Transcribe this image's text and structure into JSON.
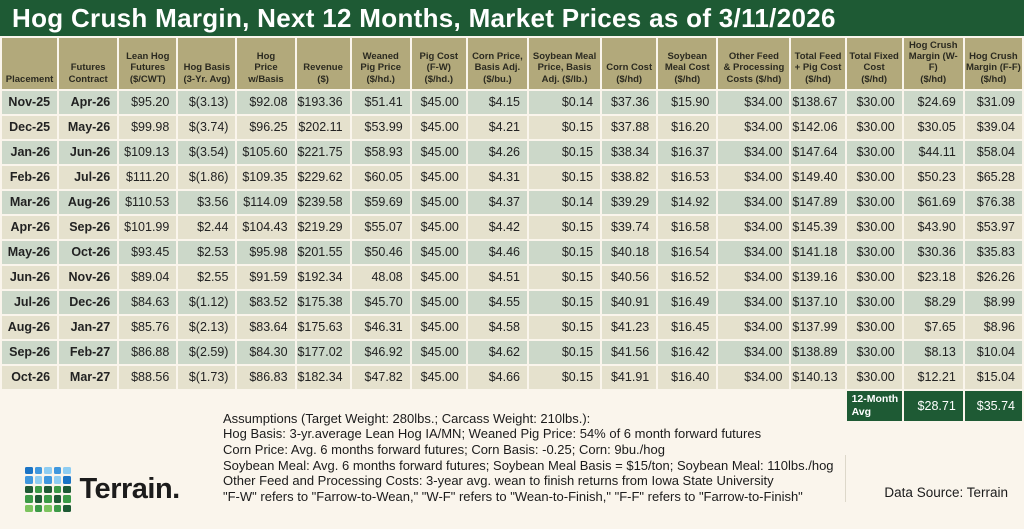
{
  "title": "Hog Crush Margin, Next 12 Months, Market Prices as of 3/11/2026",
  "chart_data": {
    "type": "table",
    "title": "Hog Crush Margin, Next 12 Months, Market Prices as of 3/11/2026",
    "columns": [
      "Placement",
      "Futures\nContract",
      "Lean Hog\nFutures\n($/CWT)",
      "Hog Basis\n(3-Yr. Avg)",
      "Hog\nPrice\nw/Basis",
      "Revenue\n($)",
      "Weaned\nPig Price\n($/hd.)",
      "Pig Cost\n(F-W)\n($/hd.)",
      "Corn Price,\nBasis Adj.\n($/bu.)",
      "Soybean Meal\nPrice, Basis\nAdj. ($/lb.)",
      "Corn Cost\n($/hd)",
      "Soybean\nMeal Cost\n($/hd)",
      "Other Feed\n& Processing\nCosts ($/hd)",
      "Total Feed\n+ Pig Cost\n($/hd)",
      "Total Fixed\nCost\n($/hd)",
      "Hog Crush\nMargin (W-F)\n($/hd)",
      "Hog Crush\nMargin (F-F)\n($/hd)"
    ],
    "rows": [
      [
        "Nov-25",
        "Apr-26",
        "$95.20",
        "$(3.13)",
        "$92.08",
        "$193.36",
        "$51.41",
        "$45.00",
        "$4.15",
        "$0.14",
        "$37.36",
        "$15.90",
        "$34.00",
        "$138.67",
        "$30.00",
        "$24.69",
        "$31.09"
      ],
      [
        "Dec-25",
        "May-26",
        "$99.98",
        "$(3.74)",
        "$96.25",
        "$202.11",
        "$53.99",
        "$45.00",
        "$4.21",
        "$0.15",
        "$37.88",
        "$16.20",
        "$34.00",
        "$142.06",
        "$30.00",
        "$30.05",
        "$39.04"
      ],
      [
        "Jan-26",
        "Jun-26",
        "$109.13",
        "$(3.54)",
        "$105.60",
        "$221.75",
        "$58.93",
        "$45.00",
        "$4.26",
        "$0.15",
        "$38.34",
        "$16.37",
        "$34.00",
        "$147.64",
        "$30.00",
        "$44.11",
        "$58.04"
      ],
      [
        "Feb-26",
        "Jul-26",
        "$111.20",
        "$(1.86)",
        "$109.35",
        "$229.62",
        "$60.05",
        "$45.00",
        "$4.31",
        "$0.15",
        "$38.82",
        "$16.53",
        "$34.00",
        "$149.40",
        "$30.00",
        "$50.23",
        "$65.28"
      ],
      [
        "Mar-26",
        "Aug-26",
        "$110.53",
        "$3.56",
        "$114.09",
        "$239.58",
        "$59.69",
        "$45.00",
        "$4.37",
        "$0.14",
        "$39.29",
        "$14.92",
        "$34.00",
        "$147.89",
        "$30.00",
        "$61.69",
        "$76.38"
      ],
      [
        "Apr-26",
        "Sep-26",
        "$101.99",
        "$2.44",
        "$104.43",
        "$219.29",
        "$55.07",
        "$45.00",
        "$4.42",
        "$0.15",
        "$39.74",
        "$16.58",
        "$34.00",
        "$145.39",
        "$30.00",
        "$43.90",
        "$53.97"
      ],
      [
        "May-26",
        "Oct-26",
        "$93.45",
        "$2.53",
        "$95.98",
        "$201.55",
        "$50.46",
        "$45.00",
        "$4.46",
        "$0.15",
        "$40.18",
        "$16.54",
        "$34.00",
        "$141.18",
        "$30.00",
        "$30.36",
        "$35.83"
      ],
      [
        "Jun-26",
        "Nov-26",
        "$89.04",
        "$2.55",
        "$91.59",
        "$192.34",
        "48.08",
        "$45.00",
        "$4.51",
        "$0.15",
        "$40.56",
        "$16.52",
        "$34.00",
        "$139.16",
        "$30.00",
        "$23.18",
        "$26.26"
      ],
      [
        "Jul-26",
        "Dec-26",
        "$84.63",
        "$(1.12)",
        "$83.52",
        "$175.38",
        "$45.70",
        "$45.00",
        "$4.55",
        "$0.15",
        "$40.91",
        "$16.49",
        "$34.00",
        "$137.10",
        "$30.00",
        "$8.29",
        "$8.99"
      ],
      [
        "Aug-26",
        "Jan-27",
        "$85.76",
        "$(2.13)",
        "$83.64",
        "$175.63",
        "$46.31",
        "$45.00",
        "$4.58",
        "$0.15",
        "$41.23",
        "$16.45",
        "$34.00",
        "$137.99",
        "$30.00",
        "$7.65",
        "$8.96"
      ],
      [
        "Sep-26",
        "Feb-27",
        "$86.88",
        "$(2.59)",
        "$84.30",
        "$177.02",
        "$46.92",
        "$45.00",
        "$4.62",
        "$0.15",
        "$41.56",
        "$16.42",
        "$34.00",
        "$138.89",
        "$30.00",
        "$8.13",
        "$10.04"
      ],
      [
        "Oct-26",
        "Mar-27",
        "$88.56",
        "$(1.73)",
        "$86.83",
        "$182.34",
        "$47.82",
        "$45.00",
        "$4.66",
        "$0.15",
        "$41.91",
        "$16.40",
        "$34.00",
        "$140.13",
        "$30.00",
        "$12.21",
        "$15.04"
      ]
    ],
    "summary": {
      "label": "12-Month\nAvg",
      "wf_value": "$28.71",
      "ff_value": "$35.74"
    }
  },
  "assumptions": {
    "lines": [
      "Assumptions (Target Weight: 280lbs.; Carcass Weight: 210lbs.):",
      "Hog Basis: 3-yr.average Lean Hog IA/MN; Weaned Pig Price: 54% of 6 month forward futures",
      "Corn Price: Avg. 6 months forward futures; Corn Basis: -0.25; Corn: 9bu./hog",
      "Soybean Meal: Avg. 6 months forward futures; Soybean Meal Basis = $15/ton; Soybean Meal: 110lbs./hog",
      "Other Feed and Processing Costs: 3-year avg. wean to finish returns from Iowa State University",
      "\"F-W\" refers to \"Farrow-to-Wean,\" \"W-F\" refers to \"Wean-to-Finish,\" \"F-F\" refers to \"Farrow-to-Finish\""
    ]
  },
  "brand": {
    "name": "Terrain.",
    "logo_colors": [
      [
        "#1b74c5",
        "#3f97dd",
        "#8ecdf2",
        "#3f97dd",
        "#8ecdf2"
      ],
      [
        "#3f97dd",
        "#8ecdf2",
        "#3f97dd",
        "#8ecdf2",
        "#1b74c5"
      ],
      [
        "#1e5a34",
        "#3c9a47",
        "#1e5a34",
        "#3c9a47",
        "#1e5a34"
      ],
      [
        "#3c9a47",
        "#1e5a34",
        "#3c9a47",
        "#1e5a34",
        "#3c9a47"
      ],
      [
        "#7cc35e",
        "#3c9a47",
        "#7cc35e",
        "#3c9a47",
        "#1e5a34"
      ]
    ]
  },
  "data_source": "Data Source: Terrain",
  "colors": {
    "title_bar": "#1e5a34",
    "header_bg": "#b2a97b",
    "row_odd": "#ccd8c9",
    "row_even": "#e5e1cd",
    "summary_bg": "#1e5a34",
    "page_bg": "#faf5ec"
  }
}
